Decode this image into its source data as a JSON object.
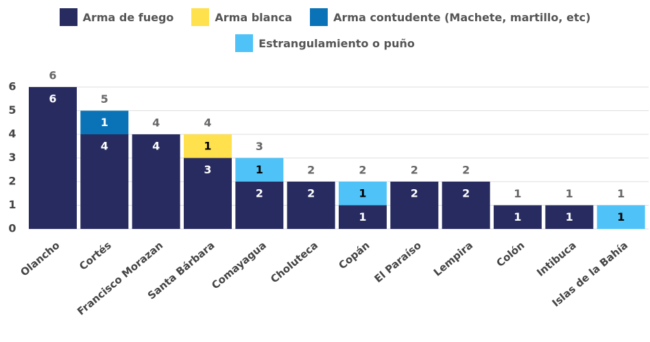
{
  "chart_data": {
    "type": "stacked-bar",
    "categories": [
      "Olancho",
      "Cortés",
      "Francisco Morazan",
      "Santa Bárbara",
      "Comayagua",
      "Choluteca",
      "Copán",
      "El Paraíso",
      "Lempira",
      "Colón",
      "Intibuca",
      "Islas de la Bahía"
    ],
    "series": [
      {
        "name": "Arma de fuego",
        "color": "#272b5f",
        "values": [
          6,
          4,
          4,
          3,
          2,
          2,
          1,
          2,
          2,
          1,
          1,
          null
        ]
      },
      {
        "name": "Arma blanca",
        "color": "#ffe14d",
        "values": [
          null,
          null,
          null,
          1,
          null,
          null,
          null,
          null,
          null,
          null,
          null,
          null
        ]
      },
      {
        "name": "Arma contudente (Machete, martillo, etc)",
        "color": "#0a73b8",
        "values": [
          null,
          1,
          null,
          null,
          null,
          null,
          null,
          null,
          null,
          null,
          null,
          null
        ]
      },
      {
        "name": "Estrangulamiento o puño",
        "color": "#4fc3f7",
        "values": [
          null,
          null,
          null,
          null,
          1,
          null,
          1,
          null,
          null,
          null,
          null,
          1
        ]
      }
    ],
    "totals": [
      6,
      5,
      4,
      4,
      3,
      2,
      2,
      2,
      2,
      1,
      1,
      1
    ],
    "ylim": [
      0,
      6
    ],
    "yticks": [
      0,
      1,
      2,
      3,
      4,
      5,
      6
    ],
    "grid": true
  }
}
